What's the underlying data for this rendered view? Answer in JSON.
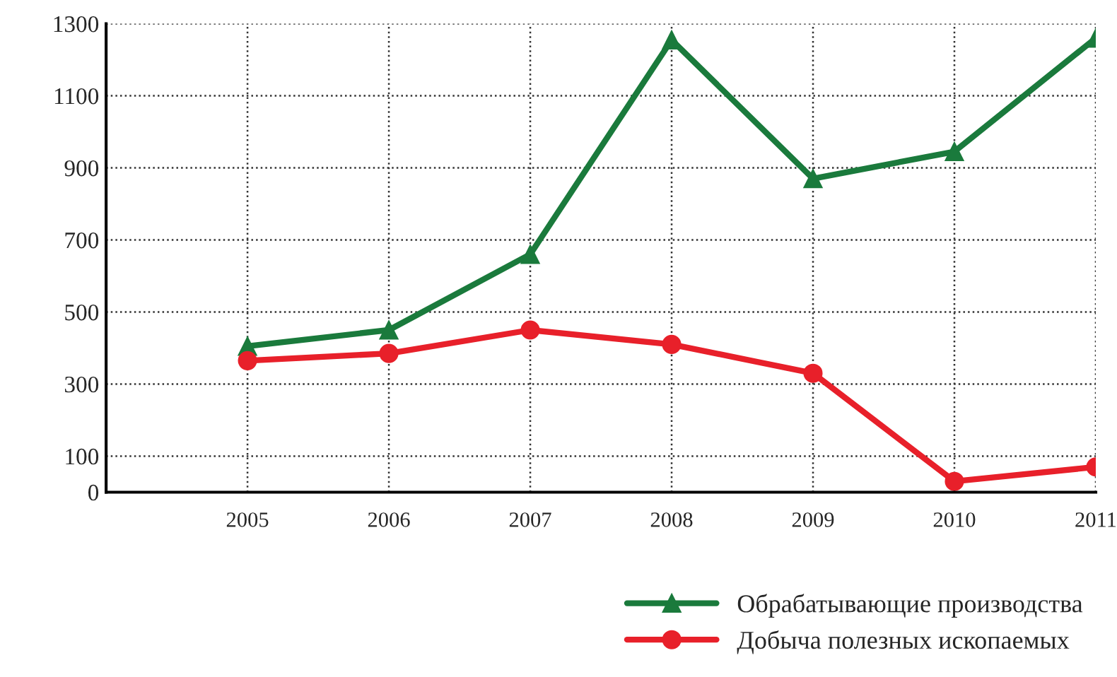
{
  "chart_data": {
    "type": "line",
    "x": [
      2005,
      2006,
      2007,
      2008,
      2009,
      2010,
      2011
    ],
    "series": [
      {
        "name": "Обрабатывающие производства",
        "color": "#1a7a3c",
        "marker": "triangle",
        "values": [
          405,
          450,
          660,
          1255,
          870,
          945,
          1260
        ]
      },
      {
        "name": "Добыча полезных ископаемых",
        "color": "#e8202a",
        "marker": "circle",
        "values": [
          365,
          385,
          450,
          410,
          330,
          30,
          70
        ]
      }
    ],
    "xlim": [
      2004,
      2011
    ],
    "xticks": [
      2005,
      2006,
      2007,
      2008,
      2009,
      2010,
      2011
    ],
    "ylim": [
      0,
      1300
    ],
    "yticks": [
      0,
      100,
      300,
      500,
      700,
      900,
      1100,
      1300
    ],
    "grid": true,
    "legend": "bottom right",
    "line_style": "solid"
  }
}
